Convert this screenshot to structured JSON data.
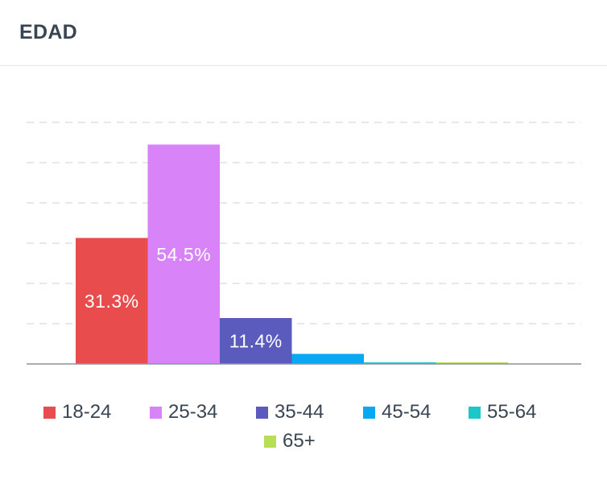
{
  "card": {
    "title": "EDAD"
  },
  "chart_data": {
    "type": "bar",
    "title": "EDAD",
    "categories": [
      "18-24",
      "25-34",
      "35-44",
      "45-54",
      "55-64",
      "65+"
    ],
    "values": [
      31.3,
      54.5,
      11.4,
      2.5,
      0.4,
      0.4
    ],
    "data_labels": [
      "31.3%",
      "54.5%",
      "11.4%",
      "",
      "",
      ""
    ],
    "colors": [
      "#e84c4c",
      "#d883f7",
      "#5b5bbd",
      "#0aa8f2",
      "#1cc7c7",
      "#b7de55"
    ],
    "ylim": [
      0,
      60
    ],
    "grid": true,
    "legend_placement": "bottom"
  }
}
